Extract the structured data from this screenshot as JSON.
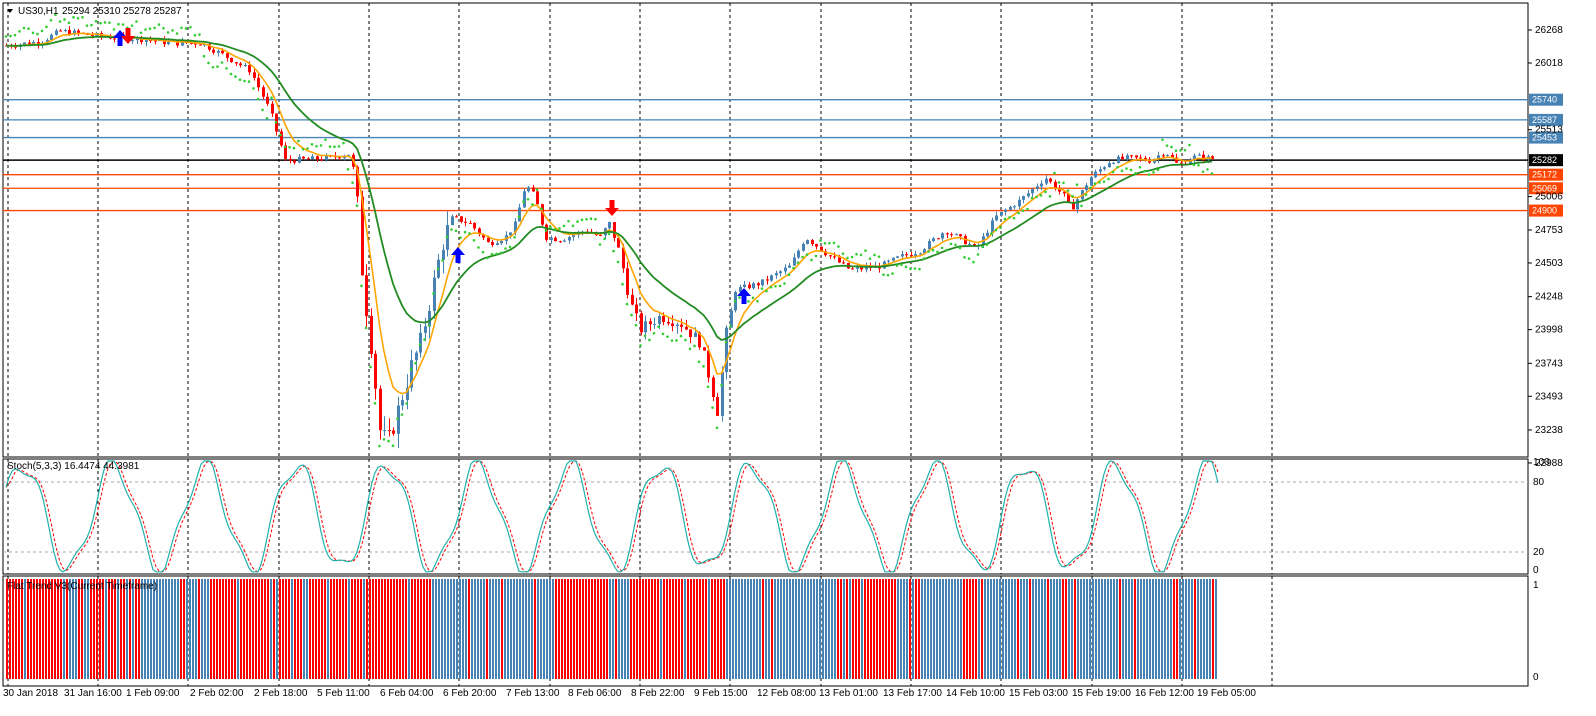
{
  "symbol_header": {
    "symbol": "US30,H1",
    "ohlc": "25294 25310 25278 25287"
  },
  "stoch_header": "Stoch(5,3,3) 16.4474 44.3981",
  "flat_trend_header": "Flat Trend V3(Current Timeframe)",
  "price_scale": [
    "26268",
    "26018",
    "25513",
    "25006",
    "24753",
    "24503",
    "24248",
    "23998",
    "23743",
    "23493",
    "23238",
    "22988"
  ],
  "stoch_scale": [
    "100",
    "80",
    "20",
    "0"
  ],
  "flat_scale": [
    "1",
    "0"
  ],
  "time_labels": [
    "30 Jan 2018",
    "31 Jan 16:00",
    "1 Feb 09:00",
    "2 Feb 02:00",
    "2 Feb 18:00",
    "5 Feb 11:00",
    "6 Feb 04:00",
    "6 Feb 20:00",
    "7 Feb 13:00",
    "8 Feb 06:00",
    "8 Feb 22:00",
    "9 Feb 15:00",
    "12 Feb 08:00",
    "13 Feb 01:00",
    "13 Feb 17:00",
    "14 Feb 10:00",
    "15 Feb 03:00",
    "15 Feb 19:00",
    "16 Feb 12:00",
    "19 Feb 05:00"
  ],
  "levels": [
    {
      "price": "25740",
      "color": "#4682b4",
      "type": "resistance"
    },
    {
      "price": "25587",
      "color": "#4682b4",
      "type": "resistance"
    },
    {
      "price": "25453",
      "color": "#4682b4",
      "type": "resistance"
    },
    {
      "price": "25282",
      "color": "#000000",
      "type": "current"
    },
    {
      "price": "25172",
      "color": "#ff4500",
      "type": "support"
    },
    {
      "price": "25069",
      "color": "#ff4500",
      "type": "support"
    },
    {
      "price": "24900",
      "color": "#ff4500",
      "type": "support"
    }
  ],
  "colors": {
    "bull": "#4682b4",
    "bear": "#ff0000",
    "ma_fast": "#ffa500",
    "ma_slow": "#228b22",
    "psar": "#32cd32",
    "stoch_main": "#20b2aa",
    "stoch_signal": "#ff0000",
    "arrow_up": "#0000ff"
  }
}
